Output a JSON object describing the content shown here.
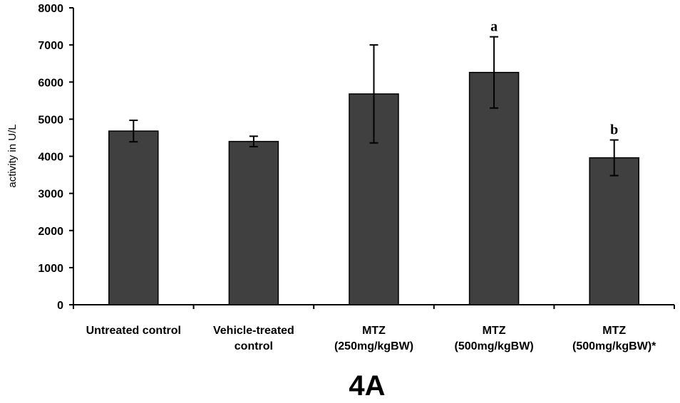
{
  "figure_label": "4A",
  "chart_data": {
    "type": "bar",
    "title": "",
    "xlabel": "",
    "ylabel": "activity in U/L",
    "ylim": [
      0,
      8000
    ],
    "yticks": [
      0,
      1000,
      2000,
      3000,
      4000,
      5000,
      6000,
      7000,
      8000
    ],
    "categories": [
      [
        "Untreated control"
      ],
      [
        "Vehicle-treated",
        "control"
      ],
      [
        "MTZ",
        "(250mg/kgBW)"
      ],
      [
        "MTZ",
        "(500mg/kgBW)"
      ],
      [
        "MTZ",
        "(500mg/kgBW)*"
      ]
    ],
    "values": [
      4680,
      4400,
      5680,
      6260,
      3960
    ],
    "error_plus": [
      290,
      140,
      1320,
      960,
      480
    ],
    "error_minus": [
      290,
      140,
      1320,
      960,
      480
    ],
    "annotations": [
      "",
      "",
      "",
      "a",
      "b"
    ],
    "colors": {
      "bar": "#404040",
      "bar_edge": "#000000",
      "axis": "#000000"
    },
    "grid": false,
    "legend": "none"
  }
}
